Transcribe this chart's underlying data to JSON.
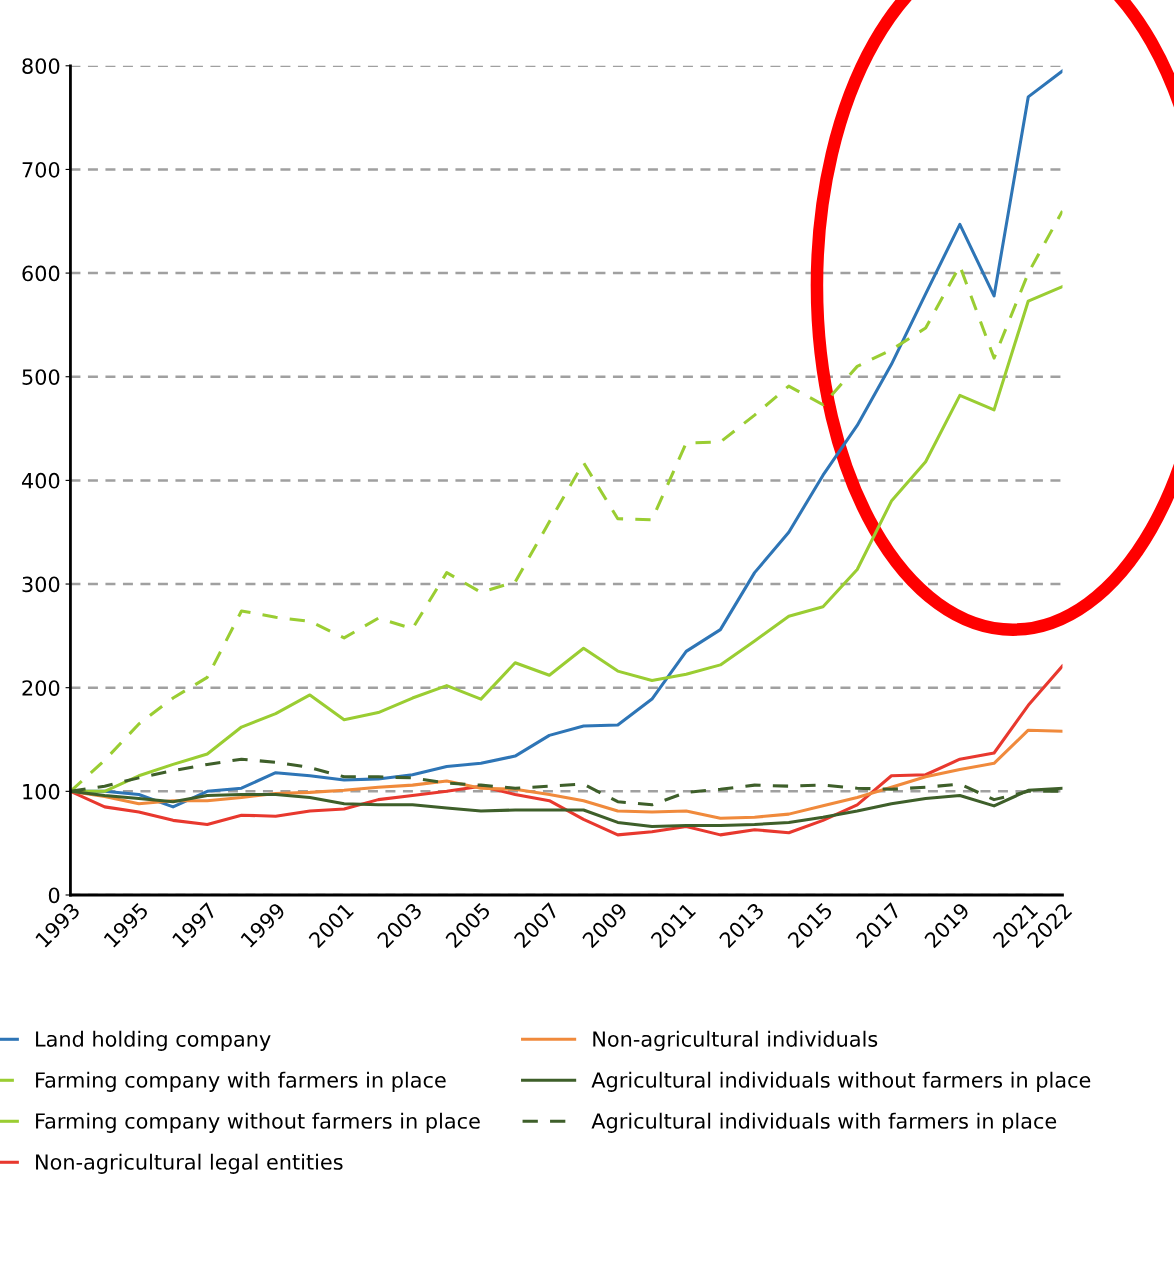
{
  "chart_data": {
    "type": "line",
    "x": [
      1993,
      1994,
      1995,
      1996,
      1997,
      1998,
      1999,
      2000,
      2001,
      2002,
      2003,
      2004,
      2005,
      2006,
      2007,
      2008,
      2009,
      2010,
      2011,
      2012,
      2013,
      2014,
      2015,
      2016,
      2017,
      2018,
      2019,
      2020,
      2021,
      2022
    ],
    "xlim": [
      1993,
      2022
    ],
    "xticks": [
      1993,
      1995,
      1997,
      1999,
      2001,
      2003,
      2005,
      2007,
      2009,
      2011,
      2013,
      2015,
      2017,
      2019,
      2021,
      2022
    ],
    "ylim": [
      0,
      800
    ],
    "yticks": [
      0,
      100,
      200,
      300,
      400,
      500,
      600,
      700,
      800
    ],
    "grid": "y",
    "legend": "bottom",
    "marker": "none",
    "series": [
      {
        "name": "Land holding company",
        "color": "#2e75b6",
        "line_style": "solid",
        "values": [
          100,
          100,
          97,
          85,
          100,
          103,
          118,
          115,
          111,
          112,
          116,
          124,
          127,
          134,
          154,
          163,
          164,
          189,
          235,
          256,
          311,
          350,
          405,
          453,
          512,
          580,
          647,
          578,
          770,
          795
        ]
      },
      {
        "name": "Farming company with farmers in place",
        "color": "#9acd32",
        "line_style": "dashed",
        "values": [
          100,
          130,
          165,
          190,
          210,
          274,
          268,
          264,
          248,
          267,
          257,
          311,
          292,
          302,
          360,
          417,
          363,
          362,
          436,
          437,
          463,
          491,
          473,
          510,
          526,
          547,
          607,
          518,
          600,
          660
        ]
      },
      {
        "name": "Farming company without farmers in place",
        "color": "#9acd32",
        "line_style": "solid",
        "values": [
          100,
          100,
          115,
          126,
          136,
          162,
          175,
          193,
          169,
          176,
          190,
          202,
          189,
          224,
          212,
          238,
          216,
          207,
          213,
          222,
          245,
          269,
          278,
          314,
          380,
          418,
          482,
          468,
          573,
          587
        ]
      },
      {
        "name": "Non-agricultural legal entities",
        "color": "#e8382e",
        "line_style": "solid",
        "values": [
          100,
          85,
          80,
          72,
          68,
          77,
          76,
          81,
          83,
          92,
          96,
          100,
          105,
          97,
          91,
          73,
          58,
          61,
          66,
          58,
          63,
          60,
          72,
          87,
          115,
          116,
          131,
          137,
          183,
          221
        ]
      },
      {
        "name": "Non-agricultural individuals",
        "color": "#f08a3c",
        "line_style": "solid",
        "values": [
          100,
          95,
          88,
          91,
          91,
          94,
          98,
          99,
          101,
          104,
          106,
          110,
          103,
          102,
          97,
          91,
          81,
          80,
          81,
          74,
          75,
          78,
          86,
          94,
          104,
          114,
          121,
          127,
          159,
          158
        ]
      },
      {
        "name": "Agricultural individuals without farmers in place",
        "color": "#3e5f2a",
        "line_style": "solid",
        "values": [
          100,
          96,
          93,
          90,
          96,
          97,
          97,
          94,
          88,
          87,
          87,
          84,
          81,
          82,
          82,
          82,
          70,
          66,
          67,
          67,
          68,
          70,
          75,
          81,
          88,
          93,
          96,
          86,
          101,
          103
        ]
      },
      {
        "name": "Agricultural individuals with farmers in place",
        "color": "#3e5f2a",
        "line_style": "dashed",
        "values": [
          100,
          105,
          113,
          120,
          126,
          131,
          128,
          123,
          114,
          114,
          113,
          108,
          106,
          103,
          105,
          107,
          90,
          87,
          99,
          102,
          106,
          105,
          106,
          103,
          102,
          104,
          107,
          92,
          100,
          100
        ]
      }
    ]
  }
}
